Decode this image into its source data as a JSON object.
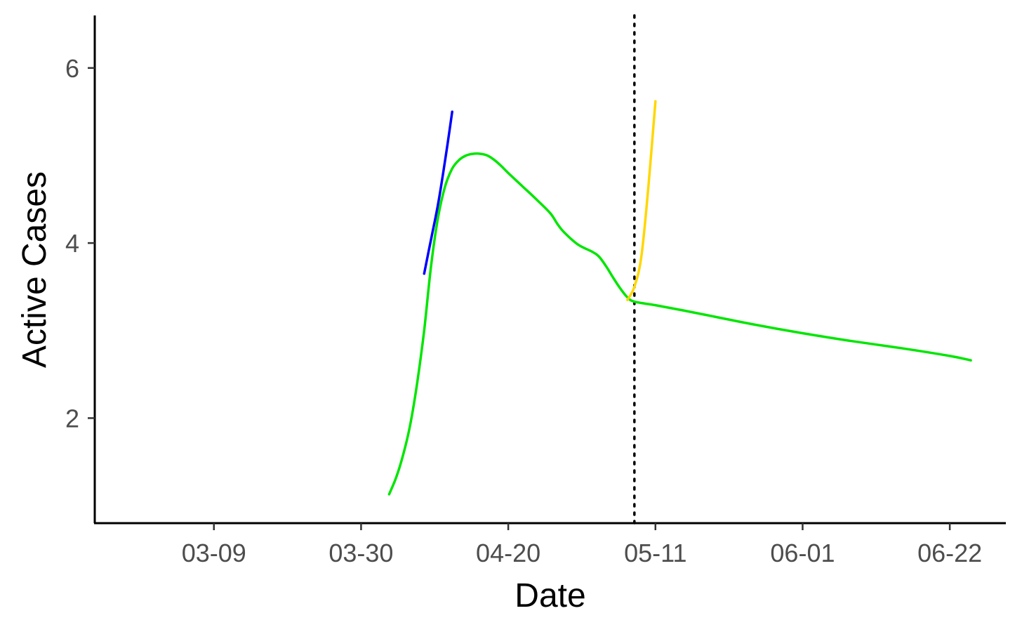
{
  "chart_data": {
    "type": "line",
    "xlabel": "Date",
    "ylabel": "Active Cases",
    "x_ticks": [
      "03-09",
      "03-30",
      "04-20",
      "05-11",
      "06-01",
      "06-22"
    ],
    "y_ticks": [
      2,
      4,
      6
    ],
    "xlim": [
      "2020-02-21",
      "2020-06-30"
    ],
    "ylim": [
      0.8,
      6.6
    ],
    "grid": false,
    "legend": "none",
    "reference_line": {
      "axis": "x",
      "value": "2020-05-08",
      "style": "dotted",
      "color": "#000000"
    },
    "series": [
      {
        "color": "#00e600",
        "points": [
          [
            "2020-04-03",
            1.13
          ],
          [
            "2020-04-04",
            1.32
          ],
          [
            "2020-04-05",
            1.58
          ],
          [
            "2020-04-06",
            1.92
          ],
          [
            "2020-04-07",
            2.4
          ],
          [
            "2020-04-08",
            3.0
          ],
          [
            "2020-04-09",
            3.75
          ],
          [
            "2020-04-10",
            4.3
          ],
          [
            "2020-04-11",
            4.65
          ],
          [
            "2020-04-12",
            4.85
          ],
          [
            "2020-04-13",
            4.95
          ],
          [
            "2020-04-14",
            5.0
          ],
          [
            "2020-04-15",
            5.02
          ],
          [
            "2020-04-16",
            5.02
          ],
          [
            "2020-04-17",
            5.0
          ],
          [
            "2020-04-18",
            4.95
          ],
          [
            "2020-04-19",
            4.88
          ],
          [
            "2020-04-20",
            4.8
          ],
          [
            "2020-04-22",
            4.65
          ],
          [
            "2020-04-24",
            4.5
          ],
          [
            "2020-04-26",
            4.34
          ],
          [
            "2020-04-27",
            4.22
          ],
          [
            "2020-04-28",
            4.12
          ],
          [
            "2020-04-30",
            3.98
          ],
          [
            "2020-05-02",
            3.9
          ],
          [
            "2020-05-03",
            3.84
          ],
          [
            "2020-05-04",
            3.73
          ],
          [
            "2020-05-05",
            3.6
          ],
          [
            "2020-05-06",
            3.48
          ],
          [
            "2020-05-07",
            3.38
          ],
          [
            "2020-05-08",
            3.33
          ],
          [
            "2020-05-11",
            3.29
          ],
          [
            "2020-05-15",
            3.23
          ],
          [
            "2020-05-20",
            3.15
          ],
          [
            "2020-05-25",
            3.07
          ],
          [
            "2020-06-01",
            2.97
          ],
          [
            "2020-06-08",
            2.88
          ],
          [
            "2020-06-15",
            2.8
          ],
          [
            "2020-06-22",
            2.71
          ],
          [
            "2020-06-25",
            2.66
          ]
        ]
      },
      {
        "color": "#0000ff",
        "points": [
          [
            "2020-04-08",
            3.65
          ],
          [
            "2020-04-09",
            4.05
          ],
          [
            "2020-04-10",
            4.45
          ],
          [
            "2020-04-11",
            4.95
          ],
          [
            "2020-04-12",
            5.5
          ]
        ]
      },
      {
        "color": "#ffd700",
        "points": [
          [
            "2020-05-07",
            3.35
          ],
          [
            "2020-05-08",
            3.5
          ],
          [
            "2020-05-09",
            3.85
          ],
          [
            "2020-05-10",
            4.65
          ],
          [
            "2020-05-11",
            5.62
          ]
        ]
      }
    ]
  }
}
